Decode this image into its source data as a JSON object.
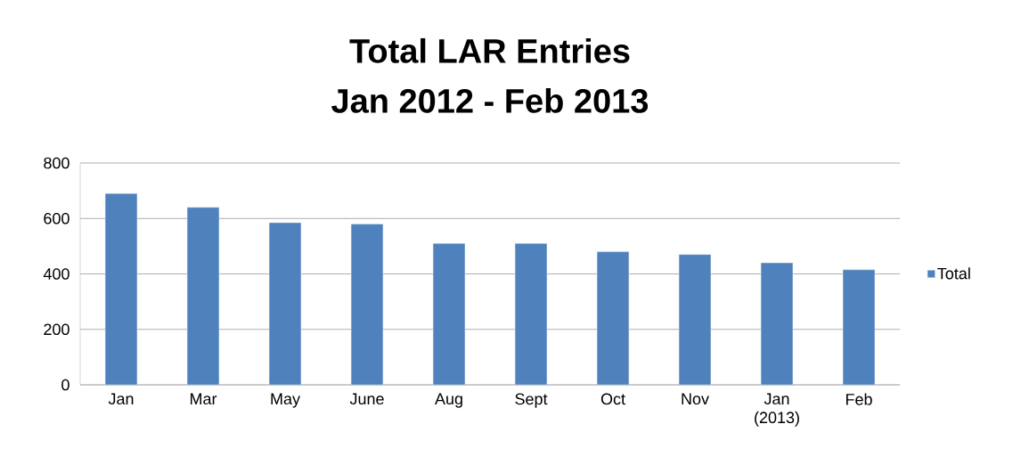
{
  "chart_data": {
    "type": "bar",
    "title": "Total LAR Entries",
    "subtitle": "Jan 2012 - Feb 2013",
    "categories": [
      "Jan",
      "Mar",
      "May",
      "June",
      "Aug",
      "Sept",
      "Oct",
      "Nov",
      "Jan (2013)",
      "Feb"
    ],
    "series": [
      {
        "name": "Total",
        "color": "#4f81bd",
        "values": [
          690,
          640,
          585,
          580,
          510,
          510,
          480,
          470,
          440,
          415
        ]
      }
    ],
    "ylim": [
      0,
      800
    ],
    "yticks": [
      0,
      200,
      400,
      600,
      800
    ],
    "grid": "y",
    "legend": "right"
  }
}
